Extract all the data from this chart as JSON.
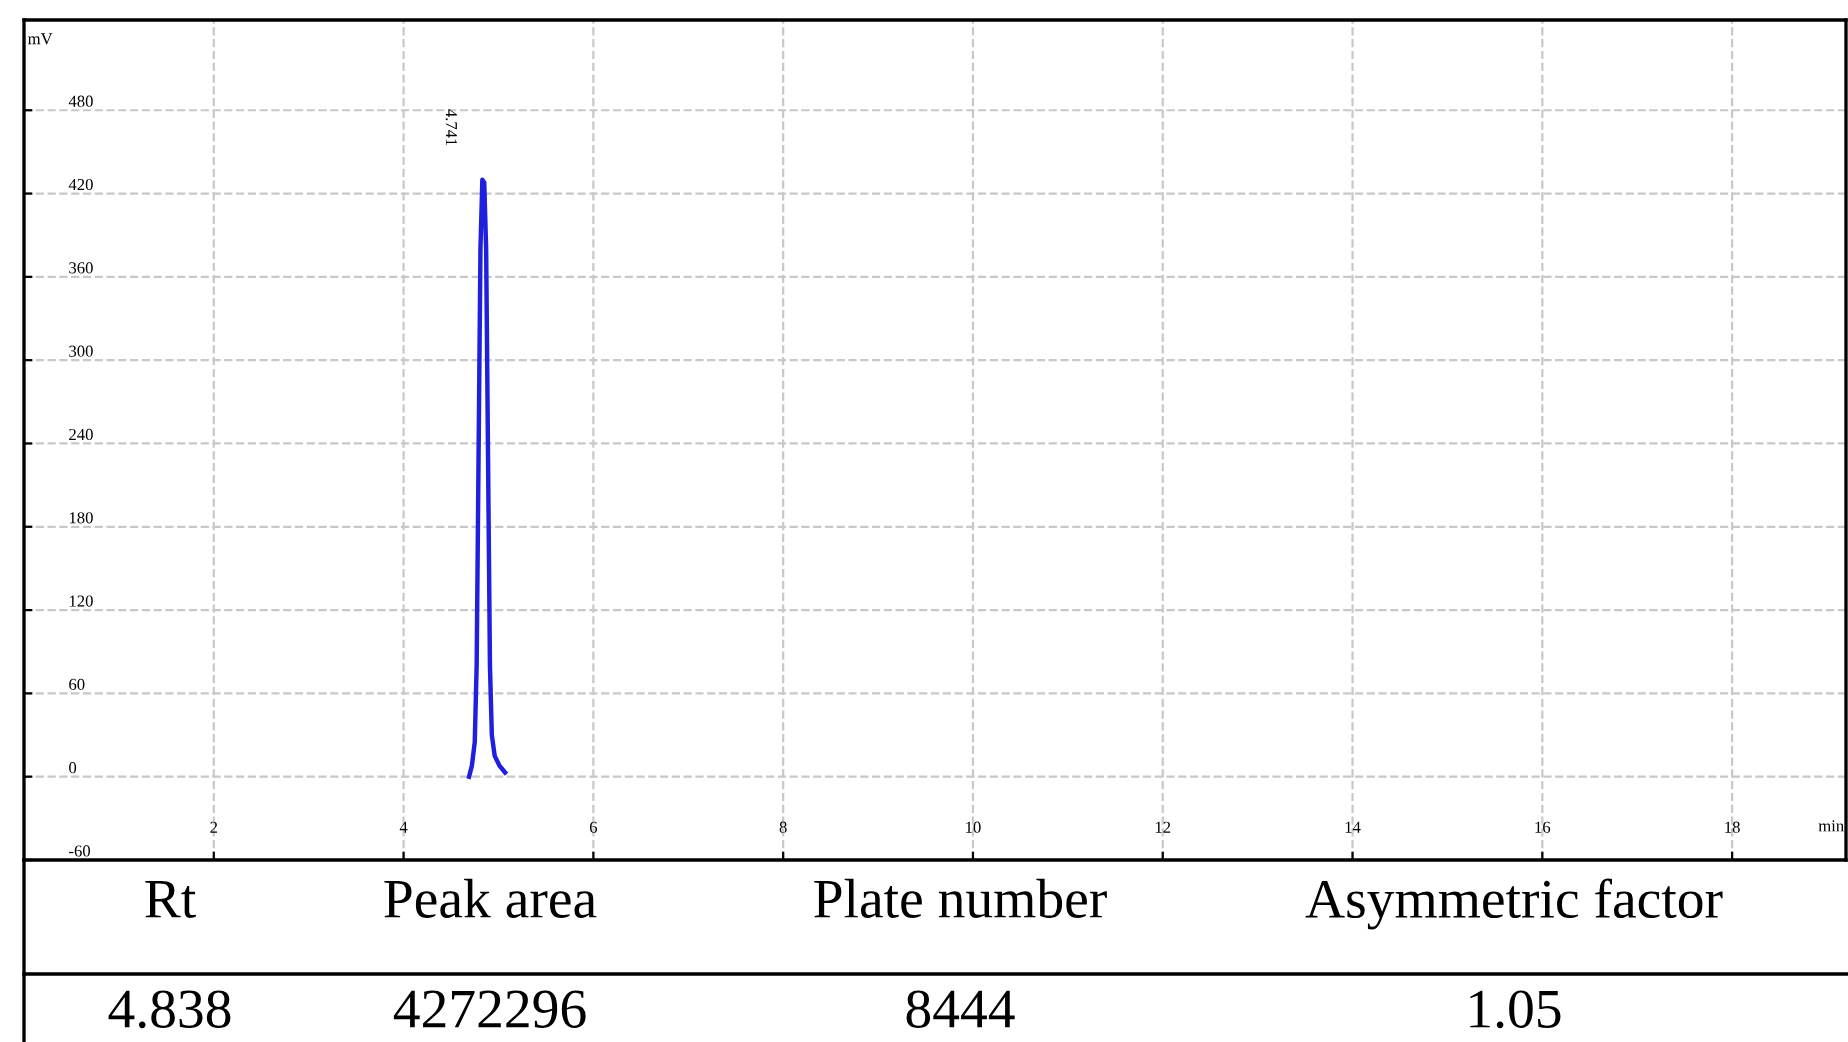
{
  "chart_data": {
    "type": "line",
    "ylabel": "mV",
    "xlabel": "min",
    "series": [
      {
        "color": "#1f1fe0",
        "x": [
          4.69,
          4.72,
          4.75,
          4.77,
          4.79,
          4.81,
          4.83,
          4.85,
          4.87,
          4.89,
          4.91,
          4.93,
          4.96,
          5.01,
          5.07
        ],
        "values": [
          0,
          8,
          25,
          80,
          230,
          380,
          430,
          428,
          380,
          230,
          80,
          30,
          15,
          8,
          3
        ]
      }
    ],
    "xlim": [
      0,
      19.2
    ],
    "ylim": [
      -60,
      545
    ],
    "xticks": [
      2,
      4,
      6,
      8,
      10,
      12,
      14,
      16,
      18
    ],
    "yticks": [
      -60,
      0,
      60,
      120,
      180,
      240,
      300,
      360,
      420,
      480
    ],
    "grid": true,
    "line_style": "solid",
    "marker": "none",
    "annotations": [
      {
        "text": "4.741",
        "x": 4.84,
        "y": 430
      },
      "Rt",
      "Peak area",
      "Plate number",
      "Asymmetric factor",
      "4.838",
      "4272296",
      "8444",
      "1.05"
    ]
  }
}
